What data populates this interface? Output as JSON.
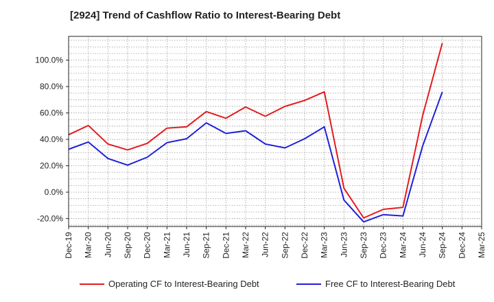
{
  "chart_data": {
    "type": "line",
    "title": "[2924]  Trend of Cashflow Ratio to Interest-Bearing Debt",
    "xlabel": "",
    "ylabel": "",
    "x": [
      "Dec-19",
      "Mar-20",
      "Jun-20",
      "Sep-20",
      "Dec-20",
      "Mar-21",
      "Jun-21",
      "Sep-21",
      "Dec-21",
      "Mar-22",
      "Jun-22",
      "Sep-22",
      "Dec-22",
      "Mar-23",
      "Jun-23",
      "Sep-23",
      "Dec-23",
      "Mar-24",
      "Jun-24",
      "Sep-24",
      "Dec-24",
      "Mar-25"
    ],
    "ylim": [
      -26,
      118
    ],
    "yticks": [
      -20,
      0,
      20,
      40,
      60,
      80,
      100
    ],
    "ytick_labels": [
      "-20.0%",
      "0.0%",
      "20.0%",
      "40.0%",
      "60.0%",
      "80.0%",
      "100.0%"
    ],
    "grid": true,
    "legend_position": "bottom",
    "series": [
      {
        "name": "Operating CF to Interest-Bearing Debt",
        "color": "#e41a1c",
        "values": [
          43.5,
          50.5,
          36.5,
          32.0,
          37.0,
          48.5,
          49.5,
          61.0,
          56.0,
          64.5,
          57.5,
          65.0,
          69.5,
          76.0,
          3.0,
          -19.5,
          -13.0,
          -11.5,
          58.0,
          113.0,
          null,
          null
        ]
      },
      {
        "name": "Free CF to Interest-Bearing Debt",
        "color": "#1f1fd8",
        "values": [
          32.5,
          38.0,
          25.5,
          20.5,
          26.5,
          37.5,
          40.5,
          52.5,
          44.5,
          46.5,
          36.5,
          33.5,
          40.5,
          49.5,
          -6.0,
          -22.5,
          -17.0,
          -18.0,
          35.0,
          76.0,
          null,
          null
        ]
      }
    ]
  }
}
